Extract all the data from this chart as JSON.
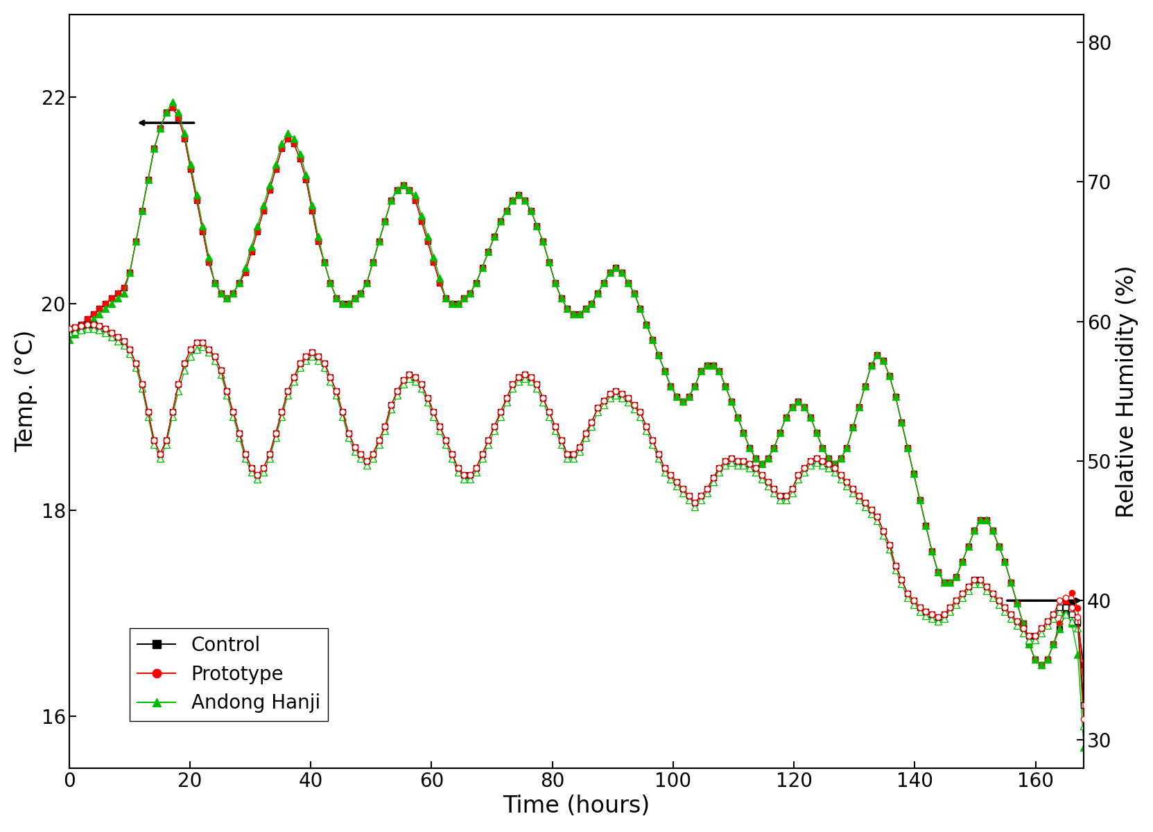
{
  "xlabel": "Time (hours)",
  "ylabel_left": "Temp. (°C)",
  "ylabel_right": "Relative Humidity (%)",
  "xlim": [
    0,
    168
  ],
  "ylim_left": [
    15.5,
    22.8
  ],
  "ylim_right": [
    28,
    82
  ],
  "yticks_left": [
    16,
    18,
    20,
    22
  ],
  "yticks_right": [
    30,
    40,
    50,
    60,
    70,
    80
  ],
  "xticks": [
    0,
    20,
    40,
    60,
    80,
    100,
    120,
    140,
    160
  ],
  "colors": {
    "control": "#000000",
    "prototype": "#ff0000",
    "hanji": "#00bb00"
  },
  "background_color": "#ffffff",
  "legend_labels": [
    "Control",
    "Prototype",
    "Andong Hanji"
  ],
  "temp_control": [
    19.7,
    19.75,
    19.8,
    19.85,
    19.9,
    19.95,
    20.0,
    20.05,
    20.1,
    20.15,
    20.3,
    20.6,
    20.9,
    21.2,
    21.5,
    21.7,
    21.85,
    21.9,
    21.8,
    21.6,
    21.3,
    21.0,
    20.7,
    20.4,
    20.2,
    20.1,
    20.05,
    20.1,
    20.2,
    20.3,
    20.5,
    20.7,
    20.9,
    21.1,
    21.3,
    21.5,
    21.6,
    21.55,
    21.4,
    21.2,
    20.9,
    20.6,
    20.4,
    20.2,
    20.05,
    20.0,
    20.0,
    20.05,
    20.1,
    20.2,
    20.4,
    20.6,
    20.8,
    21.0,
    21.1,
    21.15,
    21.1,
    21.0,
    20.8,
    20.6,
    20.4,
    20.2,
    20.05,
    20.0,
    20.0,
    20.05,
    20.1,
    20.2,
    20.35,
    20.5,
    20.65,
    20.8,
    20.9,
    21.0,
    21.05,
    21.0,
    20.9,
    20.75,
    20.6,
    20.4,
    20.2,
    20.05,
    19.95,
    19.9,
    19.9,
    19.95,
    20.0,
    20.1,
    20.2,
    20.3,
    20.35,
    20.3,
    20.2,
    20.1,
    19.95,
    19.8,
    19.65,
    19.5,
    19.35,
    19.2,
    19.1,
    19.05,
    19.1,
    19.2,
    19.35,
    19.4,
    19.4,
    19.35,
    19.2,
    19.05,
    18.9,
    18.75,
    18.6,
    18.5,
    18.45,
    18.5,
    18.6,
    18.75,
    18.9,
    19.0,
    19.05,
    19.0,
    18.9,
    18.75,
    18.6,
    18.5,
    18.45,
    18.5,
    18.6,
    18.8,
    19.0,
    19.2,
    19.4,
    19.5,
    19.45,
    19.3,
    19.1,
    18.85,
    18.6,
    18.35,
    18.1,
    17.85,
    17.6,
    17.4,
    17.3,
    17.3,
    17.35,
    17.5,
    17.65,
    17.8,
    17.9,
    17.9,
    17.8,
    17.65,
    17.5,
    17.3,
    17.1,
    16.9,
    16.7,
    16.55,
    16.5,
    16.55,
    16.7,
    16.85,
    17.0,
    17.1,
    16.9,
    16.5
  ],
  "temp_prototype": [
    19.7,
    19.75,
    19.8,
    19.85,
    19.9,
    19.95,
    20.0,
    20.05,
    20.1,
    20.15,
    20.3,
    20.6,
    20.9,
    21.2,
    21.5,
    21.7,
    21.85,
    21.9,
    21.8,
    21.6,
    21.3,
    21.0,
    20.7,
    20.4,
    20.2,
    20.1,
    20.05,
    20.1,
    20.2,
    20.3,
    20.5,
    20.7,
    20.9,
    21.1,
    21.3,
    21.5,
    21.6,
    21.55,
    21.4,
    21.2,
    20.9,
    20.6,
    20.4,
    20.2,
    20.05,
    20.0,
    20.0,
    20.05,
    20.1,
    20.2,
    20.4,
    20.6,
    20.8,
    21.0,
    21.1,
    21.15,
    21.1,
    21.0,
    20.8,
    20.6,
    20.4,
    20.2,
    20.05,
    20.0,
    20.0,
    20.05,
    20.1,
    20.2,
    20.35,
    20.5,
    20.65,
    20.8,
    20.9,
    21.0,
    21.05,
    21.0,
    20.9,
    20.75,
    20.6,
    20.4,
    20.2,
    20.05,
    19.95,
    19.9,
    19.9,
    19.95,
    20.0,
    20.1,
    20.2,
    20.3,
    20.35,
    20.3,
    20.2,
    20.1,
    19.95,
    19.8,
    19.65,
    19.5,
    19.35,
    19.2,
    19.1,
    19.05,
    19.1,
    19.2,
    19.35,
    19.4,
    19.4,
    19.35,
    19.2,
    19.05,
    18.9,
    18.75,
    18.6,
    18.5,
    18.45,
    18.5,
    18.6,
    18.75,
    18.9,
    19.0,
    19.05,
    19.0,
    18.9,
    18.75,
    18.6,
    18.5,
    18.45,
    18.5,
    18.6,
    18.8,
    19.0,
    19.2,
    19.4,
    19.5,
    19.45,
    19.3,
    19.1,
    18.85,
    18.6,
    18.35,
    18.1,
    17.85,
    17.6,
    17.4,
    17.3,
    17.3,
    17.35,
    17.5,
    17.65,
    17.8,
    17.9,
    17.9,
    17.8,
    17.65,
    17.5,
    17.3,
    17.1,
    16.9,
    16.7,
    16.55,
    16.5,
    16.55,
    16.7,
    16.9,
    17.1,
    17.2,
    17.05,
    16.3
  ],
  "temp_hanji": [
    19.65,
    19.7,
    19.75,
    19.8,
    19.85,
    19.9,
    19.95,
    20.0,
    20.05,
    20.1,
    20.3,
    20.6,
    20.9,
    21.2,
    21.5,
    21.7,
    21.85,
    21.95,
    21.85,
    21.65,
    21.35,
    21.05,
    20.75,
    20.45,
    20.2,
    20.1,
    20.05,
    20.1,
    20.2,
    20.35,
    20.55,
    20.75,
    20.95,
    21.15,
    21.35,
    21.55,
    21.65,
    21.6,
    21.45,
    21.25,
    20.95,
    20.65,
    20.4,
    20.2,
    20.05,
    20.0,
    20.0,
    20.05,
    20.1,
    20.2,
    20.4,
    20.6,
    20.8,
    21.0,
    21.1,
    21.15,
    21.1,
    21.05,
    20.85,
    20.65,
    20.45,
    20.25,
    20.05,
    20.0,
    20.0,
    20.05,
    20.1,
    20.2,
    20.35,
    20.5,
    20.65,
    20.8,
    20.9,
    21.0,
    21.05,
    21.0,
    20.9,
    20.75,
    20.6,
    20.4,
    20.2,
    20.05,
    19.95,
    19.9,
    19.9,
    19.95,
    20.0,
    20.1,
    20.2,
    20.3,
    20.35,
    20.3,
    20.2,
    20.1,
    19.95,
    19.8,
    19.65,
    19.5,
    19.35,
    19.2,
    19.1,
    19.05,
    19.1,
    19.2,
    19.35,
    19.4,
    19.4,
    19.35,
    19.2,
    19.05,
    18.9,
    18.75,
    18.6,
    18.5,
    18.45,
    18.5,
    18.6,
    18.75,
    18.9,
    19.0,
    19.05,
    19.0,
    18.9,
    18.75,
    18.6,
    18.5,
    18.45,
    18.5,
    18.6,
    18.8,
    19.0,
    19.2,
    19.4,
    19.5,
    19.45,
    19.3,
    19.1,
    18.85,
    18.6,
    18.35,
    18.1,
    17.85,
    17.6,
    17.4,
    17.3,
    17.3,
    17.35,
    17.5,
    17.65,
    17.8,
    17.9,
    17.9,
    17.8,
    17.65,
    17.5,
    17.3,
    17.1,
    16.9,
    16.7,
    16.55,
    16.5,
    16.55,
    16.7,
    16.85,
    17.0,
    16.9,
    16.6,
    15.7
  ],
  "hum_control": [
    59.5,
    59.6,
    59.7,
    59.8,
    59.8,
    59.7,
    59.5,
    59.2,
    58.9,
    58.6,
    58.0,
    57.0,
    55.5,
    53.5,
    51.5,
    50.5,
    51.5,
    53.5,
    55.5,
    57.0,
    58.0,
    58.5,
    58.5,
    58.0,
    57.5,
    56.5,
    55.0,
    53.5,
    52.0,
    50.5,
    49.5,
    49.0,
    49.5,
    50.5,
    52.0,
    53.5,
    55.0,
    56.0,
    57.0,
    57.5,
    57.8,
    57.5,
    57.0,
    56.0,
    55.0,
    53.5,
    52.0,
    51.0,
    50.5,
    50.0,
    50.5,
    51.5,
    52.5,
    54.0,
    55.0,
    55.8,
    56.2,
    56.0,
    55.5,
    54.5,
    53.5,
    52.5,
    51.5,
    50.5,
    49.5,
    49.0,
    49.0,
    49.5,
    50.5,
    51.5,
    52.5,
    53.5,
    54.5,
    55.5,
    56.0,
    56.2,
    56.0,
    55.5,
    54.5,
    53.5,
    52.5,
    51.5,
    50.5,
    50.5,
    51.0,
    52.0,
    52.8,
    53.8,
    54.3,
    54.8,
    55.0,
    54.8,
    54.5,
    54.0,
    53.5,
    52.5,
    51.5,
    50.5,
    49.5,
    49.0,
    48.5,
    48.0,
    47.5,
    47.0,
    47.5,
    48.0,
    48.8,
    49.5,
    50.0,
    50.2,
    50.0,
    50.0,
    49.8,
    49.5,
    49.0,
    48.5,
    48.0,
    47.5,
    47.5,
    48.0,
    49.0,
    49.5,
    50.0,
    50.2,
    50.0,
    49.8,
    49.5,
    49.0,
    48.5,
    48.0,
    47.5,
    47.0,
    46.5,
    46.0,
    45.0,
    44.0,
    42.5,
    41.5,
    40.5,
    40.0,
    39.5,
    39.2,
    39.0,
    38.8,
    39.0,
    39.5,
    40.0,
    40.5,
    41.0,
    41.5,
    41.5,
    41.0,
    40.5,
    40.0,
    39.5,
    39.0,
    38.5,
    38.0,
    37.5,
    37.5,
    38.0,
    38.5,
    39.0,
    39.5,
    39.5,
    39.0,
    38.5,
    32.5
  ],
  "hum_prototype": [
    59.5,
    59.6,
    59.7,
    59.8,
    59.8,
    59.7,
    59.5,
    59.2,
    58.9,
    58.6,
    58.0,
    57.0,
    55.5,
    53.5,
    51.5,
    50.5,
    51.5,
    53.5,
    55.5,
    57.0,
    58.0,
    58.5,
    58.5,
    58.0,
    57.5,
    56.5,
    55.0,
    53.5,
    52.0,
    50.5,
    49.5,
    49.0,
    49.5,
    50.5,
    52.0,
    53.5,
    55.0,
    56.0,
    57.0,
    57.5,
    57.8,
    57.5,
    57.0,
    56.0,
    55.0,
    53.5,
    52.0,
    51.0,
    50.5,
    50.0,
    50.5,
    51.5,
    52.5,
    54.0,
    55.0,
    55.8,
    56.2,
    56.0,
    55.5,
    54.5,
    53.5,
    52.5,
    51.5,
    50.5,
    49.5,
    49.0,
    49.0,
    49.5,
    50.5,
    51.5,
    52.5,
    53.5,
    54.5,
    55.5,
    56.0,
    56.2,
    56.0,
    55.5,
    54.5,
    53.5,
    52.5,
    51.5,
    50.5,
    50.5,
    51.0,
    52.0,
    52.8,
    53.8,
    54.3,
    54.8,
    55.0,
    54.8,
    54.5,
    54.0,
    53.5,
    52.5,
    51.5,
    50.5,
    49.5,
    49.0,
    48.5,
    48.0,
    47.5,
    47.0,
    47.5,
    48.0,
    48.8,
    49.5,
    50.0,
    50.2,
    50.0,
    50.0,
    49.8,
    49.5,
    49.0,
    48.5,
    48.0,
    47.5,
    47.5,
    48.0,
    49.0,
    49.5,
    50.0,
    50.2,
    50.0,
    49.8,
    49.5,
    49.0,
    48.5,
    48.0,
    47.5,
    47.0,
    46.5,
    46.0,
    45.0,
    44.0,
    42.5,
    41.5,
    40.5,
    40.0,
    39.5,
    39.2,
    39.0,
    38.8,
    39.0,
    39.5,
    40.0,
    40.5,
    41.0,
    41.5,
    41.5,
    41.0,
    40.5,
    40.0,
    39.5,
    39.0,
    38.5,
    38.0,
    37.5,
    37.5,
    38.0,
    38.5,
    39.0,
    40.0,
    40.2,
    39.5,
    38.8,
    31.5
  ],
  "hum_hanji": [
    59.2,
    59.3,
    59.4,
    59.5,
    59.5,
    59.4,
    59.2,
    58.9,
    58.6,
    58.3,
    57.7,
    56.7,
    55.2,
    53.2,
    51.2,
    50.2,
    51.2,
    53.2,
    55.0,
    56.5,
    57.5,
    58.0,
    58.2,
    57.8,
    57.2,
    56.2,
    54.7,
    53.2,
    51.7,
    50.2,
    49.2,
    48.7,
    49.2,
    50.2,
    51.7,
    53.2,
    54.7,
    55.7,
    56.7,
    57.2,
    57.5,
    57.2,
    56.7,
    55.7,
    54.7,
    53.2,
    51.7,
    50.7,
    50.2,
    49.7,
    50.2,
    51.2,
    52.2,
    53.7,
    54.7,
    55.5,
    55.9,
    55.7,
    55.2,
    54.2,
    53.2,
    52.2,
    51.2,
    50.2,
    49.2,
    48.7,
    48.7,
    49.2,
    50.2,
    51.2,
    52.2,
    53.2,
    54.2,
    55.2,
    55.7,
    55.9,
    55.7,
    55.2,
    54.2,
    53.2,
    52.2,
    51.2,
    50.2,
    50.2,
    50.7,
    51.7,
    52.5,
    53.5,
    54.0,
    54.5,
    54.7,
    54.5,
    54.2,
    53.7,
    53.2,
    52.2,
    51.2,
    50.2,
    49.2,
    48.7,
    48.2,
    47.7,
    47.2,
    46.7,
    47.2,
    47.7,
    48.5,
    49.2,
    49.7,
    49.9,
    49.7,
    49.7,
    49.5,
    49.2,
    48.7,
    48.2,
    47.7,
    47.2,
    47.2,
    47.7,
    48.7,
    49.2,
    49.7,
    49.9,
    49.7,
    49.5,
    49.2,
    48.7,
    48.2,
    47.7,
    47.2,
    46.7,
    46.2,
    45.7,
    44.7,
    43.7,
    42.2,
    41.2,
    40.2,
    39.7,
    39.2,
    38.9,
    38.7,
    38.5,
    38.7,
    39.2,
    39.7,
    40.2,
    40.7,
    41.2,
    41.2,
    40.7,
    40.2,
    39.7,
    39.2,
    38.7,
    38.2,
    37.7,
    37.2,
    37.2,
    37.7,
    38.2,
    38.7,
    39.2,
    39.0,
    38.5,
    38.0,
    31.0
  ]
}
